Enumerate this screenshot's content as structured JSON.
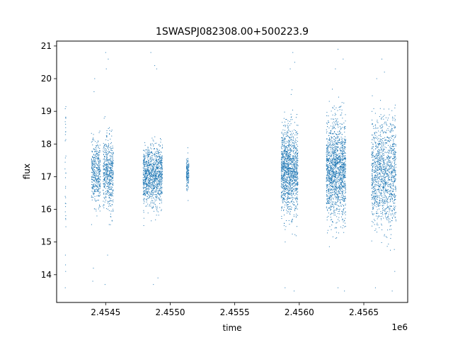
{
  "chart_data": {
    "type": "scatter",
    "title": "1SWASPJ082308.00+500223.9",
    "xlabel": "time",
    "ylabel": "flux",
    "x_offset_label": "1e6",
    "xlim": [
      2454120,
      2456840
    ],
    "ylim": [
      13.15,
      21.15
    ],
    "x_ticks": [
      {
        "value": 2454500,
        "label": "2.4545"
      },
      {
        "value": 2455000,
        "label": "2.4550"
      },
      {
        "value": 2455500,
        "label": "2.4555"
      },
      {
        "value": 2456000,
        "label": "2.4560"
      },
      {
        "value": 2456500,
        "label": "2.4565"
      }
    ],
    "y_ticks": [
      {
        "value": 14,
        "label": "14"
      },
      {
        "value": 15,
        "label": "15"
      },
      {
        "value": 16,
        "label": "16"
      },
      {
        "value": 17,
        "label": "17"
      },
      {
        "value": 18,
        "label": "18"
      },
      {
        "value": 19,
        "label": "19"
      },
      {
        "value": 20,
        "label": "20"
      },
      {
        "value": 21,
        "label": "21"
      }
    ],
    "grid": false,
    "marker_color": "#1f77b4",
    "series": [
      {
        "values_note": "",
        "clusters": [
          {
            "t_start": 2454185,
            "t_end": 2454192,
            "center": 17.6,
            "spread": 1.2,
            "n": 30
          },
          {
            "t_start": 2454390,
            "t_end": 2454460,
            "center": 17.1,
            "spread": 0.45,
            "n": 420
          },
          {
            "t_start": 2454480,
            "t_end": 2454560,
            "center": 17.1,
            "spread": 0.55,
            "n": 520
          },
          {
            "t_start": 2454790,
            "t_end": 2454940,
            "center": 17.0,
            "spread": 0.45,
            "n": 1100
          },
          {
            "t_start": 2455125,
            "t_end": 2455145,
            "center": 17.1,
            "spread": 0.25,
            "n": 140
          },
          {
            "t_start": 2455860,
            "t_end": 2455990,
            "center": 17.2,
            "spread": 0.65,
            "n": 1300
          },
          {
            "t_start": 2456210,
            "t_end": 2456360,
            "center": 17.2,
            "spread": 0.75,
            "n": 1500
          },
          {
            "t_start": 2456560,
            "t_end": 2456750,
            "center": 17.1,
            "spread": 0.8,
            "n": 1300
          }
        ],
        "outliers": [
          {
            "x": 2454190,
            "y": 18.8
          },
          {
            "x": 2454190,
            "y": 18.5
          },
          {
            "x": 2454188,
            "y": 14.6
          },
          {
            "x": 2454189,
            "y": 14.3
          },
          {
            "x": 2454190,
            "y": 14.1
          },
          {
            "x": 2454187,
            "y": 13.6
          },
          {
            "x": 2454415,
            "y": 20.0
          },
          {
            "x": 2454410,
            "y": 19.6
          },
          {
            "x": 2454405,
            "y": 14.2
          },
          {
            "x": 2454400,
            "y": 13.8
          },
          {
            "x": 2454500,
            "y": 20.8
          },
          {
            "x": 2454520,
            "y": 20.6
          },
          {
            "x": 2454505,
            "y": 20.3
          },
          {
            "x": 2454515,
            "y": 14.6
          },
          {
            "x": 2454495,
            "y": 13.7
          },
          {
            "x": 2454850,
            "y": 20.8
          },
          {
            "x": 2454880,
            "y": 20.4
          },
          {
            "x": 2454895,
            "y": 20.3
          },
          {
            "x": 2454870,
            "y": 13.7
          },
          {
            "x": 2454905,
            "y": 13.9
          },
          {
            "x": 2455950,
            "y": 20.8
          },
          {
            "x": 2455965,
            "y": 20.5
          },
          {
            "x": 2455930,
            "y": 20.3
          },
          {
            "x": 2455890,
            "y": 13.6
          },
          {
            "x": 2455960,
            "y": 13.5
          },
          {
            "x": 2456300,
            "y": 20.9
          },
          {
            "x": 2456340,
            "y": 20.6
          },
          {
            "x": 2456280,
            "y": 20.3
          },
          {
            "x": 2456300,
            "y": 13.6
          },
          {
            "x": 2456350,
            "y": 13.5
          },
          {
            "x": 2456640,
            "y": 20.6
          },
          {
            "x": 2456660,
            "y": 20.2
          },
          {
            "x": 2456600,
            "y": 20.0
          },
          {
            "x": 2456720,
            "y": 13.5
          },
          {
            "x": 2456590,
            "y": 13.6
          },
          {
            "x": 2456740,
            "y": 14.1
          }
        ]
      }
    ]
  }
}
